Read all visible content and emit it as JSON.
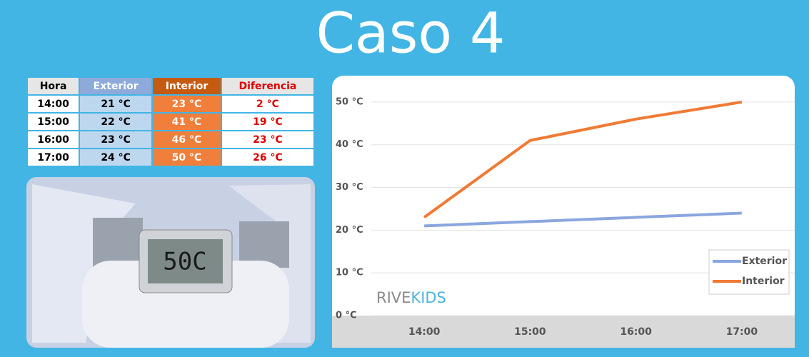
{
  "title": "Caso 4",
  "table": {
    "header": [
      "Hora",
      "Exterior",
      "Interior",
      "Diferencia"
    ],
    "rows": [
      [
        "14:00",
        "21 °C",
        "23 °C",
        "2 °C"
      ],
      [
        "15:00",
        "22 °C",
        "41 °C",
        "19 °C"
      ],
      [
        "16:00",
        "23 °C",
        "46 °C",
        "23 °C"
      ],
      [
        "17:00",
        "24 °C",
        "50 °C",
        "26 °C"
      ]
    ]
  },
  "photo": {
    "display": "50C"
  },
  "chart_data": {
    "type": "line",
    "categories": [
      "14:00",
      "15:00",
      "16:00",
      "17:00"
    ],
    "series": [
      {
        "name": "Exterior",
        "color": "#8aa6de",
        "values": [
          21,
          22,
          23,
          24
        ]
      },
      {
        "name": "Interior",
        "color": "#f07a35",
        "values": [
          23,
          41,
          46,
          50
        ]
      }
    ],
    "ylim": [
      0,
      55
    ],
    "yticks": [
      {
        "value": 0,
        "label": "0 °C"
      },
      {
        "value": 10,
        "label": "10 °C"
      },
      {
        "value": 20,
        "label": "20 °C"
      },
      {
        "value": 30,
        "label": "30 °C"
      },
      {
        "value": 40,
        "label": "40 °C"
      },
      {
        "value": 50,
        "label": "50 °C"
      }
    ],
    "grid": true,
    "legend": "lower right",
    "watermark": [
      "RIVE",
      "KIDS"
    ]
  }
}
